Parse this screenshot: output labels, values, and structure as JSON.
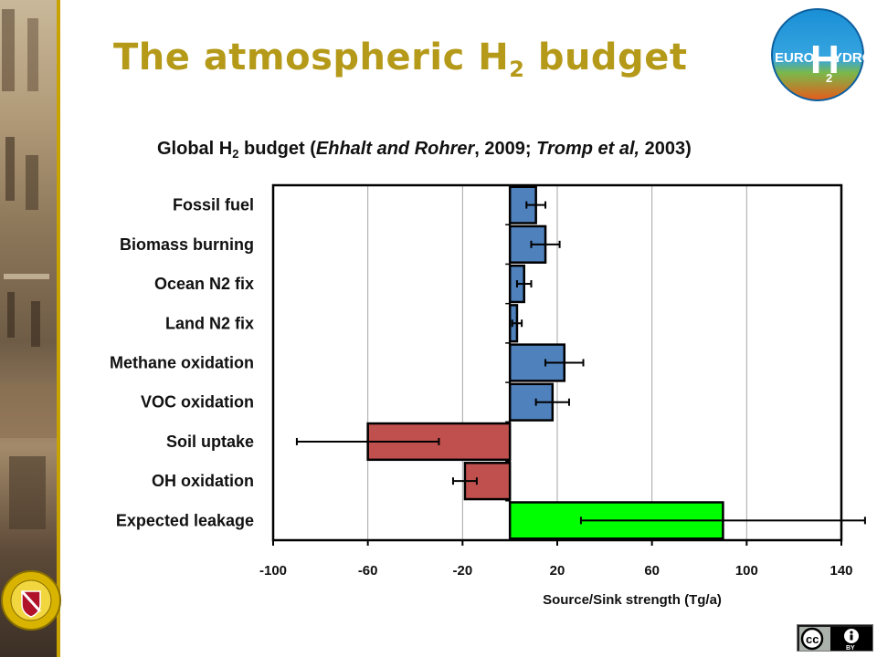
{
  "slide": {
    "title_main": "The atmospheric H",
    "title_sub": "2",
    "title_end": " budget"
  },
  "logo": {
    "left_text": "EURO",
    "big_letter": "H",
    "right_text": "YDROS",
    "subscript": "2"
  },
  "chart_title": {
    "part1": "Global H",
    "sub": "2",
    "part2": " budget (",
    "italic1": "Ehhalt and Rohrer",
    "part3": ", 2009; ",
    "italic2": "Tromp et al,",
    "part4": " 2003)"
  },
  "badge": {
    "cc": "cc",
    "by": "BY"
  },
  "chart_data": {
    "type": "bar",
    "orientation": "horizontal",
    "categories": [
      "Fossil fuel",
      "Biomass burning",
      "Ocean N2 fix",
      "Land N2 fix",
      "Methane oxidation",
      "VOC oxidation",
      "Soil uptake",
      "OH oxidation",
      "Expected leakage"
    ],
    "values": [
      11,
      15,
      6,
      3,
      23,
      18,
      -60,
      -19,
      90
    ],
    "errors": [
      4,
      6,
      3,
      2,
      8,
      7,
      30,
      5,
      60
    ],
    "colors": [
      "#4f81bd",
      "#4f81bd",
      "#4f81bd",
      "#4f81bd",
      "#4f81bd",
      "#4f81bd",
      "#c0504d",
      "#c0504d",
      "#00ff00"
    ],
    "xlabel": "Source/Sink strength (Tg/a)",
    "ylabel": "",
    "xlim": [
      -100,
      140
    ],
    "xticks": [
      -100,
      -60,
      -20,
      20,
      60,
      100,
      140
    ],
    "grid": "vertical",
    "legend": "none"
  }
}
